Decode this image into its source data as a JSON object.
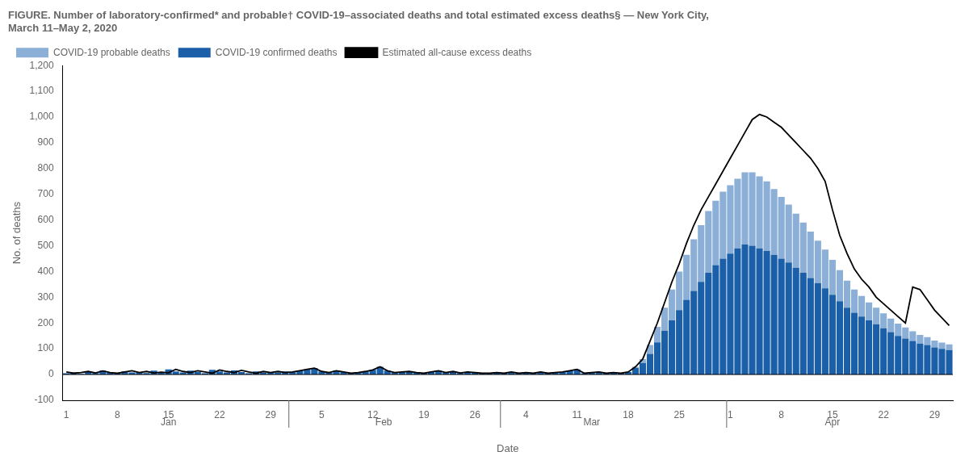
{
  "chart_data": {
    "type": "bar",
    "title": [
      "FIGURE. Number of laboratory-confirmed* and probable† COVID-19–associated deaths and total estimated excess deaths§ — New York City,",
      "March 11–May 2, 2020"
    ],
    "xlabel": "Date",
    "ylabel": "No. of deaths",
    "categories": [
      "1",
      null,
      null,
      null,
      null,
      null,
      null,
      "8",
      null,
      null,
      null,
      null,
      null,
      null,
      "15",
      null,
      null,
      null,
      null,
      null,
      null,
      "22",
      null,
      null,
      null,
      null,
      null,
      null,
      "29",
      null,
      null,
      null,
      null,
      null,
      null,
      "5",
      null,
      null,
      null,
      null,
      null,
      null,
      "12",
      null,
      null,
      null,
      null,
      null,
      null,
      "19",
      null,
      null,
      null,
      null,
      null,
      null,
      "26",
      null,
      null,
      null,
      null,
      null,
      null,
      "4",
      null,
      null,
      null,
      null,
      null,
      null,
      "11",
      null,
      null,
      null,
      null,
      null,
      null,
      "18",
      null,
      null,
      null,
      null,
      null,
      null,
      "25",
      null,
      null,
      null,
      null,
      null,
      null,
      "1",
      null,
      null,
      null,
      null,
      null,
      null,
      "8",
      null,
      null,
      null,
      null,
      null,
      null,
      "15",
      null,
      null,
      null,
      null,
      null,
      null,
      "22",
      null,
      null,
      null,
      null,
      null,
      null,
      "29",
      null,
      null
    ],
    "series": [
      {
        "name": "COVID-19 confirmed deaths",
        "color": "#1a5fa8",
        "values": [
          5,
          8,
          3,
          10,
          6,
          15,
          8,
          5,
          12,
          8,
          10,
          6,
          15,
          8,
          20,
          12,
          8,
          15,
          10,
          5,
          18,
          12,
          8,
          16,
          10,
          5,
          12,
          8,
          10,
          8,
          12,
          10,
          15,
          20,
          25,
          12,
          8,
          15,
          10,
          5,
          8,
          12,
          18,
          30,
          15,
          8,
          10,
          12,
          8,
          5,
          10,
          15,
          8,
          12,
          6,
          10,
          8,
          5,
          5,
          8,
          5,
          10,
          5,
          8,
          5,
          10,
          5,
          8,
          10,
          15,
          20,
          5,
          8,
          10,
          5,
          8,
          5,
          10,
          25,
          45,
          80,
          125,
          170,
          210,
          250,
          290,
          325,
          360,
          395,
          425,
          450,
          470,
          490,
          505,
          500,
          490,
          480,
          465,
          450,
          435,
          415,
          395,
          375,
          355,
          335,
          310,
          285,
          260,
          240,
          225,
          210,
          195,
          180,
          165,
          150,
          140,
          130,
          120,
          115,
          105,
          100,
          95
        ]
      },
      {
        "name": "COVID-19 probable deaths",
        "color": "#8bafd6",
        "values": [
          0,
          0,
          0,
          0,
          0,
          0,
          0,
          0,
          0,
          0,
          0,
          0,
          0,
          0,
          0,
          0,
          0,
          0,
          0,
          0,
          0,
          0,
          0,
          0,
          0,
          0,
          0,
          0,
          0,
          0,
          0,
          0,
          0,
          0,
          0,
          0,
          0,
          0,
          0,
          0,
          0,
          0,
          0,
          0,
          0,
          0,
          0,
          0,
          0,
          0,
          0,
          0,
          0,
          0,
          0,
          0,
          0,
          0,
          0,
          0,
          0,
          0,
          0,
          0,
          0,
          0,
          0,
          0,
          0,
          0,
          0,
          0,
          0,
          0,
          0,
          0,
          0,
          0,
          5,
          15,
          35,
          60,
          90,
          120,
          150,
          175,
          200,
          220,
          240,
          250,
          260,
          265,
          270,
          280,
          285,
          280,
          270,
          255,
          240,
          225,
          210,
          195,
          180,
          165,
          150,
          135,
          120,
          105,
          90,
          80,
          70,
          65,
          58,
          52,
          48,
          43,
          38,
          34,
          30,
          27,
          24,
          22
        ]
      },
      {
        "name": "Estimated all-cause excess deaths",
        "color": "#000000",
        "type": "line",
        "values": [
          10,
          5,
          8,
          12,
          6,
          14,
          8,
          5,
          10,
          15,
          8,
          12,
          6,
          9,
          7,
          20,
          12,
          8,
          15,
          10,
          5,
          18,
          12,
          8,
          16,
          10,
          5,
          12,
          8,
          12,
          8,
          10,
          15,
          20,
          25,
          12,
          8,
          15,
          10,
          5,
          8,
          12,
          18,
          30,
          15,
          8,
          10,
          12,
          8,
          5,
          10,
          15,
          8,
          12,
          6,
          10,
          8,
          5,
          5,
          8,
          5,
          10,
          5,
          8,
          5,
          10,
          5,
          8,
          10,
          15,
          20,
          5,
          8,
          10,
          5,
          8,
          5,
          10,
          30,
          60,
          130,
          200,
          280,
          360,
          430,
          510,
          580,
          640,
          690,
          740,
          790,
          840,
          890,
          940,
          990,
          1010,
          1000,
          980,
          960,
          930,
          900,
          870,
          840,
          800,
          750,
          640,
          540,
          470,
          410,
          370,
          340,
          300,
          275,
          250,
          225,
          200,
          340,
          330,
          290,
          250,
          220,
          190
        ]
      }
    ],
    "stacked": true,
    "ylim": [
      -100,
      1200
    ],
    "yticks": [
      -100,
      0,
      100,
      200,
      300,
      400,
      500,
      600,
      700,
      800,
      900,
      {
        "value": 1000,
        "label": "1,000"
      },
      {
        "value": 1100,
        "label": "1,100"
      },
      {
        "value": 1200,
        "label": "1,200"
      }
    ],
    "grid": false,
    "legend": "upper left",
    "annotations": [
      "Jan",
      "Feb",
      "Mar",
      "Apr"
    ]
  }
}
